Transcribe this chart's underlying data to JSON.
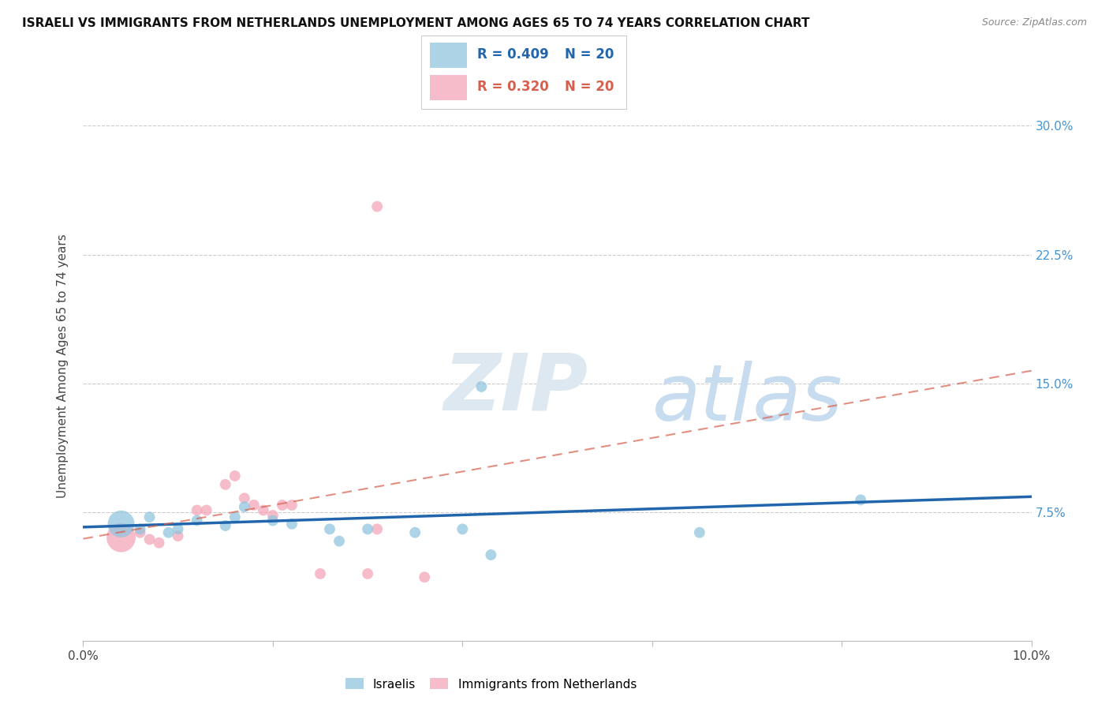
{
  "title": "ISRAELI VS IMMIGRANTS FROM NETHERLANDS UNEMPLOYMENT AMONG AGES 65 TO 74 YEARS CORRELATION CHART",
  "source": "Source: ZipAtlas.com",
  "ylabel": "Unemployment Among Ages 65 to 74 years",
  "xlim": [
    0.0,
    0.1
  ],
  "ylim": [
    0.0,
    0.32
  ],
  "x_ticks": [
    0.0,
    0.02,
    0.04,
    0.06,
    0.08,
    0.1
  ],
  "x_tick_labels": [
    "0.0%",
    "",
    "",
    "",
    "",
    "10.0%"
  ],
  "y_ticks": [
    0.075,
    0.15,
    0.225,
    0.3
  ],
  "y_tick_labels": [
    "7.5%",
    "15.0%",
    "22.5%",
    "30.0%"
  ],
  "legend_r1": "0.409",
  "legend_n1": "20",
  "legend_r2": "0.320",
  "legend_n2": "20",
  "watermark_zip": "ZIP",
  "watermark_atlas": "atlas",
  "blue_color": "#92c5de",
  "pink_color": "#f4a6b8",
  "blue_line_color": "#2166ac",
  "pink_line_color": "#d6604d",
  "right_axis_color": "#4495d4",
  "blue_scatter": [
    [
      0.004,
      0.068
    ],
    [
      0.006,
      0.065
    ],
    [
      0.007,
      0.072
    ],
    [
      0.009,
      0.063
    ],
    [
      0.01,
      0.065
    ],
    [
      0.012,
      0.07
    ],
    [
      0.015,
      0.067
    ],
    [
      0.016,
      0.072
    ],
    [
      0.017,
      0.078
    ],
    [
      0.02,
      0.07
    ],
    [
      0.022,
      0.068
    ],
    [
      0.026,
      0.065
    ],
    [
      0.027,
      0.058
    ],
    [
      0.03,
      0.065
    ],
    [
      0.035,
      0.063
    ],
    [
      0.04,
      0.065
    ],
    [
      0.042,
      0.148
    ],
    [
      0.043,
      0.05
    ],
    [
      0.065,
      0.063
    ],
    [
      0.082,
      0.082
    ]
  ],
  "blue_scatter_sizes": [
    600,
    100,
    100,
    100,
    100,
    100,
    100,
    100,
    100,
    100,
    100,
    100,
    100,
    100,
    100,
    100,
    100,
    100,
    100,
    100
  ],
  "pink_scatter": [
    [
      0.004,
      0.06
    ],
    [
      0.006,
      0.063
    ],
    [
      0.007,
      0.059
    ],
    [
      0.008,
      0.057
    ],
    [
      0.01,
      0.061
    ],
    [
      0.012,
      0.076
    ],
    [
      0.013,
      0.076
    ],
    [
      0.015,
      0.091
    ],
    [
      0.016,
      0.096
    ],
    [
      0.017,
      0.083
    ],
    [
      0.018,
      0.079
    ],
    [
      0.019,
      0.076
    ],
    [
      0.02,
      0.073
    ],
    [
      0.021,
      0.079
    ],
    [
      0.022,
      0.079
    ],
    [
      0.025,
      0.039
    ],
    [
      0.03,
      0.039
    ],
    [
      0.031,
      0.065
    ],
    [
      0.031,
      0.253
    ],
    [
      0.036,
      0.037
    ]
  ],
  "pink_scatter_sizes": [
    700,
    100,
    100,
    100,
    100,
    100,
    100,
    100,
    100,
    100,
    100,
    100,
    100,
    100,
    100,
    100,
    100,
    100,
    100,
    100
  ],
  "background_color": "#ffffff",
  "grid_color": "#cccccc"
}
